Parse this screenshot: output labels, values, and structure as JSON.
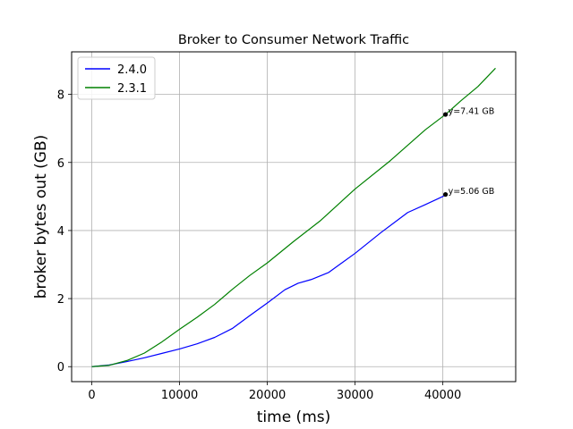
{
  "chart_data": {
    "type": "line",
    "title": "Broker to Consumer Network Traffic",
    "xlabel": "time (ms)",
    "ylabel": "broker bytes out (GB)",
    "xlim": [
      -2300,
      48300
    ],
    "ylim": [
      -0.44,
      9.25
    ],
    "xticks": [
      0,
      10000,
      20000,
      30000,
      40000
    ],
    "yticks": [
      0,
      2,
      4,
      6,
      8
    ],
    "grid": true,
    "legend_position": "upper-left",
    "series": [
      {
        "name": "2.4.0",
        "color": "#0000ff",
        "x": [
          0,
          2000,
          4000,
          6000,
          8000,
          10000,
          12000,
          14000,
          16000,
          18000,
          20000,
          22000,
          23500,
          25000,
          27000,
          30000,
          33000,
          36000,
          38000,
          40000,
          40300
        ],
        "y": [
          0,
          0.05,
          0.15,
          0.26,
          0.39,
          0.52,
          0.67,
          0.86,
          1.12,
          1.5,
          1.87,
          2.26,
          2.45,
          2.56,
          2.77,
          3.33,
          3.95,
          4.53,
          4.76,
          5.0,
          5.06
        ]
      },
      {
        "name": "2.3.1",
        "color": "#008000",
        "x": [
          0,
          2000,
          4000,
          6000,
          8000,
          10000,
          12000,
          14000,
          16000,
          18000,
          20000,
          23000,
          26000,
          30000,
          34000,
          38000,
          40300,
          42000,
          44000,
          46000
        ],
        "y": [
          0,
          0.04,
          0.18,
          0.4,
          0.73,
          1.1,
          1.45,
          1.83,
          2.27,
          2.68,
          3.05,
          3.68,
          4.28,
          5.22,
          6.05,
          6.96,
          7.41,
          7.8,
          8.23,
          8.77
        ]
      }
    ],
    "annotations": [
      {
        "x": 40300,
        "y": 5.06,
        "text": "y=5.06 GB",
        "series": "2.4.0"
      },
      {
        "x": 40300,
        "y": 7.41,
        "text": "y=7.41 GB",
        "series": "2.3.1"
      }
    ]
  }
}
